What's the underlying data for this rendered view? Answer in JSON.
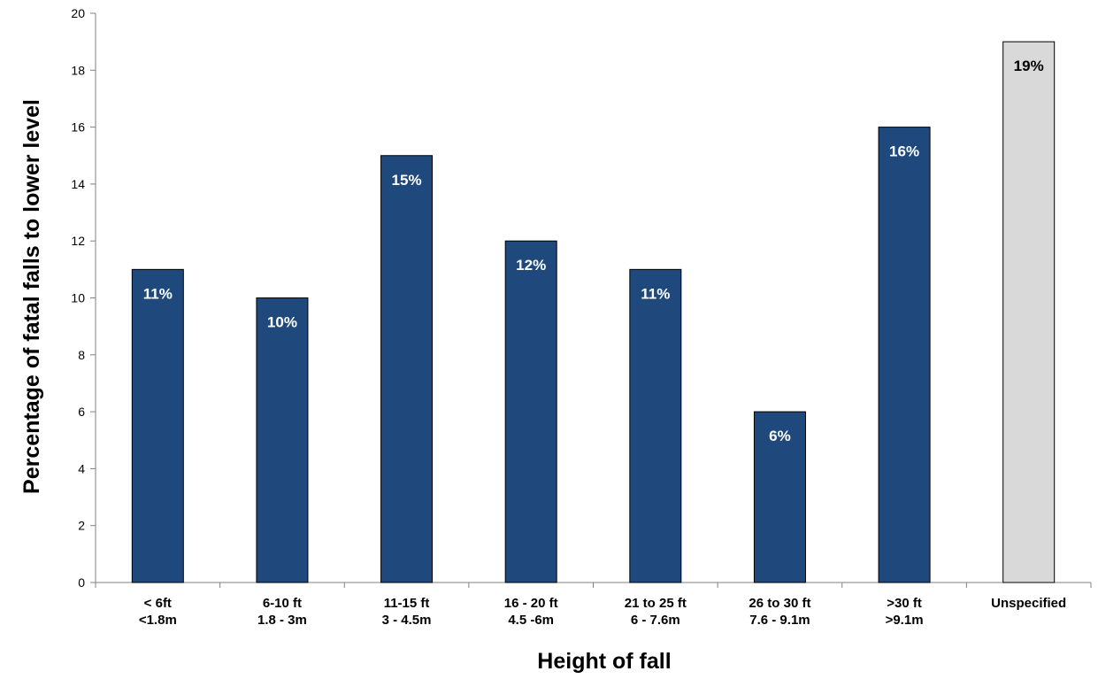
{
  "chart_data": {
    "type": "bar",
    "title": "",
    "xlabel": "Height of fall",
    "ylabel": "Percentage of fatal falls to lower level",
    "ylim": [
      0,
      20
    ],
    "yticks": [
      0,
      2,
      4,
      6,
      8,
      10,
      12,
      14,
      16,
      18,
      20
    ],
    "grid": false,
    "legend": "none",
    "categories": [
      [
        "< 6ft",
        "<1.8m"
      ],
      [
        "6-10 ft",
        "1.8 - 3m"
      ],
      [
        "11-15 ft",
        "3 - 4.5m"
      ],
      [
        "16 - 20 ft",
        "4.5 -6m"
      ],
      [
        "21 to 25 ft",
        "6 - 7.6m"
      ],
      [
        "26 to 30 ft",
        "7.6 - 9.1m"
      ],
      [
        ">30 ft",
        ">9.1m"
      ],
      [
        "Unspecified"
      ]
    ],
    "values": [
      11,
      10,
      15,
      12,
      11,
      6,
      16,
      19
    ],
    "data_labels": [
      "11%",
      "10%",
      "15%",
      "12%",
      "11%",
      "6%",
      "16%",
      "19%"
    ],
    "bar_colors": [
      "#1F497D",
      "#1F497D",
      "#1F497D",
      "#1F497D",
      "#1F497D",
      "#1F497D",
      "#1F497D",
      "#D9D9D9"
    ],
    "label_colors": [
      "#ffffff",
      "#ffffff",
      "#ffffff",
      "#ffffff",
      "#ffffff",
      "#ffffff",
      "#ffffff",
      "#000000"
    ]
  }
}
